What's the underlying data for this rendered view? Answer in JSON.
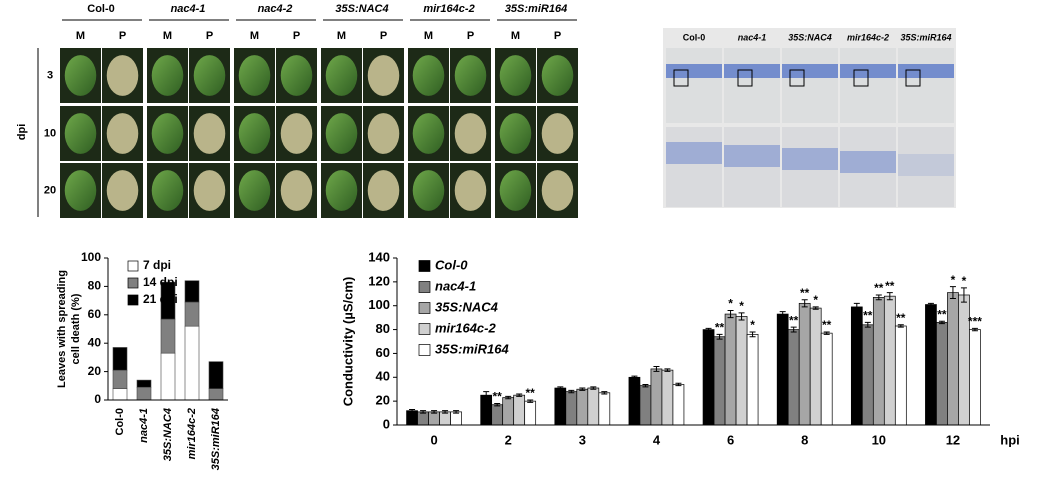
{
  "photo_panel": {
    "columns": [
      "Col-0",
      "nac4-1",
      "nac4-2",
      "35S:NAC4",
      "mir164c-2",
      "35S:miR164"
    ],
    "subcolumns": [
      "M",
      "P"
    ],
    "rows": [
      "3",
      "10",
      "20"
    ],
    "row_axis": "dpi"
  },
  "stain_panel": {
    "columns": [
      "Col-0",
      "nac4-1",
      "35S:NAC4",
      "mir164c-2",
      "35S:miR164"
    ]
  },
  "chart_data": [
    {
      "type": "bar",
      "stacked": true,
      "ylabel": [
        "Leaves with spreading",
        "cell death (%)"
      ],
      "categories": [
        "Col-0",
        "nac4-1",
        "35S:NAC4",
        "mir164c-2",
        "35S:miR164"
      ],
      "series": [
        {
          "name": "7 dpi",
          "color": "#ffffff",
          "values": [
            8,
            0,
            33,
            52,
            0
          ]
        },
        {
          "name": "14 dpi",
          "color": "#808080",
          "values": [
            13,
            9,
            24,
            17,
            8
          ]
        },
        {
          "name": "21 dpi",
          "color": "#000000",
          "values": [
            16,
            5,
            26,
            15,
            19
          ]
        }
      ],
      "ylim": [
        0,
        100
      ],
      "yticks": [
        0,
        20,
        40,
        60,
        80,
        100
      ],
      "legend": "upper-right"
    },
    {
      "type": "bar",
      "stacked": false,
      "ylabel": "Conductivity (µS/cm)",
      "xlabel": "hpi",
      "categories": [
        "0",
        "2",
        "3",
        "4",
        "6",
        "8",
        "10",
        "12"
      ],
      "series": [
        {
          "name": "Col-0",
          "color": "#000000",
          "values": [
            12,
            25,
            31,
            40,
            80,
            93,
            99,
            101
          ],
          "errors": [
            1,
            3,
            1,
            1,
            1,
            2,
            3,
            1
          ],
          "significance": [
            null,
            null,
            null,
            null,
            null,
            null,
            null,
            null
          ]
        },
        {
          "name": "nac4-1",
          "color": "#808080",
          "values": [
            11,
            17,
            28,
            33,
            74,
            80,
            84,
            86
          ],
          "errors": [
            1,
            1,
            1,
            1,
            2,
            2,
            2,
            1
          ],
          "significance": [
            null,
            "**",
            null,
            null,
            "**",
            "**",
            "**",
            "**"
          ]
        },
        {
          "name": "35S:NAC4",
          "color": "#a6a6a6",
          "values": [
            11,
            23,
            30,
            47,
            93,
            102,
            107,
            111
          ],
          "errors": [
            1,
            1,
            1,
            2,
            3,
            3,
            2,
            5
          ],
          "significance": [
            null,
            null,
            null,
            null,
            "*",
            "**",
            "**",
            "*"
          ]
        },
        {
          "name": "mir164c-2",
          "color": "#d0d0d0",
          "values": [
            11,
            25,
            31,
            46,
            91,
            98,
            108,
            109
          ],
          "errors": [
            1,
            1,
            1,
            1,
            3,
            1,
            3,
            6
          ],
          "significance": [
            null,
            null,
            null,
            null,
            "*",
            "*",
            "**",
            "*"
          ]
        },
        {
          "name": "35S:miR164",
          "color": "#ffffff",
          "values": [
            11,
            20,
            27,
            34,
            76,
            77,
            83,
            80
          ],
          "errors": [
            1,
            1,
            1,
            1,
            2,
            1,
            1,
            1
          ],
          "significance": [
            null,
            "**",
            null,
            null,
            "*",
            "**",
            "**",
            "***"
          ]
        }
      ],
      "ylim": [
        0,
        140
      ],
      "yticks": [
        0,
        20,
        40,
        60,
        80,
        100,
        120,
        140
      ],
      "legend": "upper-left"
    }
  ]
}
